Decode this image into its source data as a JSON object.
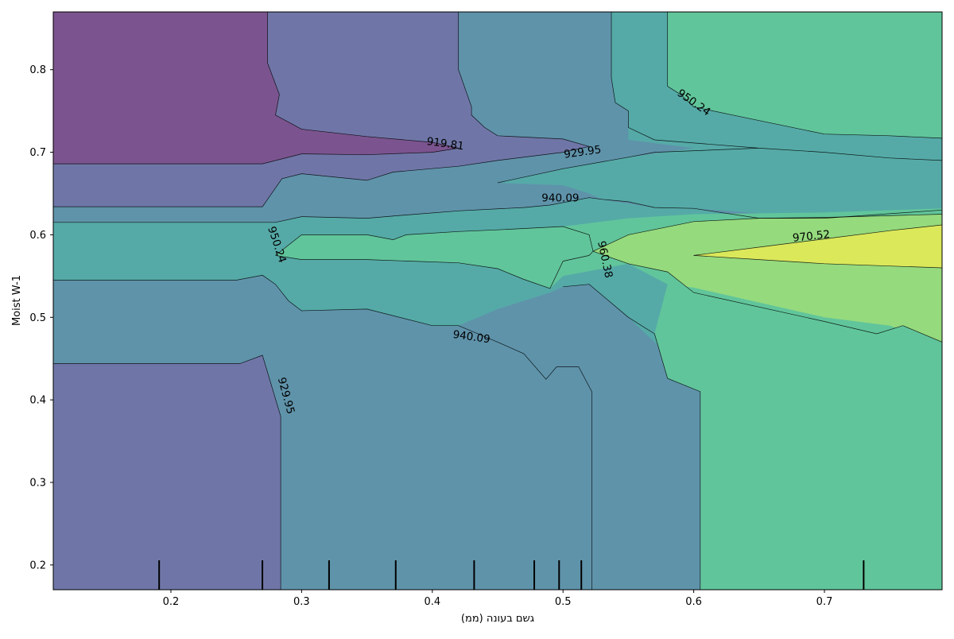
{
  "chart_data": {
    "type": "contour",
    "title": "",
    "xlabel": "גשם בעונה (ממ)",
    "ylabel": "Moist W-1",
    "xlim": [
      0.11,
      0.79
    ],
    "ylim": [
      0.17,
      0.87
    ],
    "x_ticks": [
      0.2,
      0.3,
      0.4,
      0.5,
      0.6,
      0.7
    ],
    "y_ticks": [
      0.2,
      0.3,
      0.4,
      0.5,
      0.6,
      0.7,
      0.8
    ],
    "contour_levels": [
      919.81,
      929.95,
      940.09,
      950.24,
      960.38,
      970.52
    ],
    "level_colors": {
      "below_919.81": "#7b548f",
      "919.81_929.95": "#6f76a7",
      "929.95_940.09": "#5f93aa",
      "940.09_950.24": "#55aaa7",
      "950.24_960.38": "#61c59b",
      "960.38_970.52": "#95da7d",
      "above_970.52": "#dbe85a"
    },
    "contour_labels": [
      {
        "text": "919.81",
        "x": 0.41,
        "y": 0.71,
        "rotate": 8
      },
      {
        "text": "929.95",
        "x": 0.515,
        "y": 0.7,
        "rotate": -8
      },
      {
        "text": "940.09",
        "x": 0.498,
        "y": 0.644,
        "rotate": 0
      },
      {
        "text": "950.24",
        "x": 0.281,
        "y": 0.588,
        "rotate": 72
      },
      {
        "text": "960.38",
        "x": 0.532,
        "y": 0.57,
        "rotate": 78
      },
      {
        "text": "970.52",
        "x": 0.69,
        "y": 0.598,
        "rotate": -6
      },
      {
        "text": "940.09",
        "x": 0.43,
        "y": 0.476,
        "rotate": 8
      },
      {
        "text": "929.95",
        "x": 0.288,
        "y": 0.405,
        "rotate": 75
      },
      {
        "text": "950.24",
        "x": 0.6,
        "y": 0.76,
        "rotate": 35
      }
    ],
    "rug_x": [
      0.191,
      0.27,
      0.321,
      0.372,
      0.432,
      0.478,
      0.497,
      0.514,
      0.73
    ],
    "grid": false,
    "legend": "none"
  }
}
